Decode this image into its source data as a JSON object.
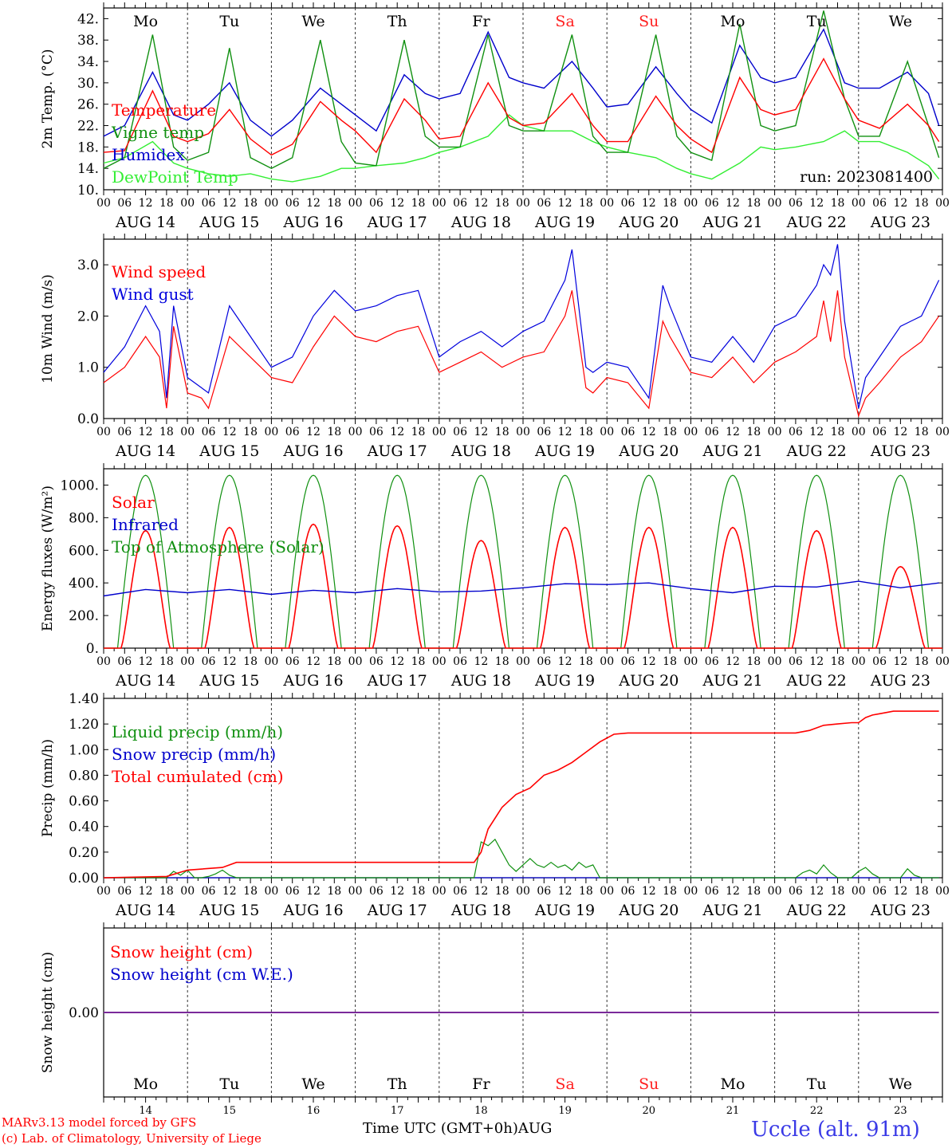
{
  "days": [
    "Mo",
    "Tu",
    "We",
    "Th",
    "Fr",
    "Sa",
    "Su",
    "Mo",
    "Tu",
    "We"
  ],
  "weekend_color": "#ff2020",
  "weekend_days": [
    5,
    6
  ],
  "dates": [
    "AUG 14",
    "AUG 15",
    "AUG 16",
    "AUG 17",
    "AUG 18",
    "AUG 19",
    "AUG 20",
    "AUG 21",
    "AUG 22",
    "AUG 23"
  ],
  "date_nums": [
    "14",
    "15",
    "16",
    "17",
    "18",
    "19",
    "20",
    "21",
    "22",
    "23"
  ],
  "hour_ticks": [
    "00",
    "06",
    "12",
    "18"
  ],
  "final_tick": "00",
  "footer": {
    "model": "MARv3.13 model forced by GFS",
    "lab": "(c) Lab. of Climatology, University of Liege",
    "xlabel": "Time UTC (GMT+0h)AUG",
    "station": "Uccle (alt. 91m)"
  },
  "chart_data": [
    {
      "type": "line",
      "ylabel": "2m Temp. (°C)",
      "ylim": [
        10,
        44
      ],
      "yticks": [
        "10.",
        "14.",
        "18.",
        "22.",
        "26.",
        "30.",
        "34.",
        "38.",
        "42."
      ],
      "annotation": "run: 2023081400",
      "x_unit": "hours from 2023-08-14 00 UTC",
      "series": [
        {
          "name": "Temperature",
          "color": "#ff0000",
          "x": [
            0,
            6,
            14,
            20,
            24,
            30,
            36,
            42,
            48,
            54,
            62,
            68,
            72,
            78,
            86,
            92,
            96,
            102,
            110,
            116,
            120,
            126,
            134,
            140,
            144,
            150,
            158,
            164,
            168,
            174,
            182,
            188,
            192,
            198,
            206,
            212,
            216,
            222,
            230,
            236,
            239
          ],
          "y": [
            17,
            17.3,
            28.5,
            20,
            19,
            20.5,
            25,
            19.5,
            16.5,
            18.5,
            26.5,
            23,
            21,
            17,
            27,
            23,
            19.5,
            20,
            30,
            23.5,
            22,
            22.5,
            28,
            22,
            19,
            19,
            27.5,
            22,
            19.5,
            17,
            31,
            25,
            24,
            25,
            34.5,
            27,
            23,
            21.5,
            26,
            22,
            19
          ]
        },
        {
          "name": "Vigne temp",
          "color": "#109010",
          "x": [
            0,
            6,
            14,
            20,
            24,
            30,
            36,
            42,
            48,
            54,
            62,
            68,
            72,
            78,
            86,
            92,
            96,
            102,
            110,
            116,
            120,
            126,
            134,
            140,
            144,
            150,
            158,
            164,
            168,
            174,
            182,
            188,
            192,
            198,
            206,
            212,
            216,
            222,
            230,
            236,
            239
          ],
          "y": [
            14,
            16,
            39,
            18,
            15.5,
            17,
            36.5,
            16,
            14,
            16,
            38,
            19,
            15,
            14.5,
            38,
            20,
            18,
            18,
            39,
            22,
            21,
            21,
            39,
            20,
            17,
            17,
            39,
            20,
            17,
            15.5,
            41,
            22,
            21,
            22,
            43.5,
            27,
            20,
            20,
            34,
            22,
            16
          ]
        },
        {
          "name": "Humidex",
          "color": "#0000cc",
          "x": [
            0,
            6,
            14,
            20,
            24,
            30,
            36,
            42,
            48,
            54,
            62,
            68,
            72,
            78,
            86,
            92,
            96,
            102,
            110,
            116,
            120,
            126,
            134,
            140,
            144,
            150,
            158,
            164,
            168,
            174,
            182,
            188,
            192,
            198,
            206,
            212,
            216,
            222,
            230,
            236,
            239
          ],
          "y": [
            20,
            22,
            32,
            24,
            23,
            26,
            30,
            23,
            20,
            23,
            29,
            26,
            24,
            21,
            31.5,
            28,
            27,
            28,
            39.5,
            31,
            30,
            29,
            34,
            29,
            25.5,
            26,
            33,
            28,
            25,
            22.5,
            37,
            31,
            30,
            31,
            40,
            30,
            29,
            29,
            32,
            28,
            22
          ]
        },
        {
          "name": "DewPoint Temp",
          "color": "#33ee33",
          "x": [
            0,
            6,
            14,
            20,
            24,
            30,
            36,
            42,
            48,
            54,
            62,
            68,
            72,
            78,
            86,
            92,
            96,
            102,
            110,
            116,
            120,
            126,
            134,
            140,
            144,
            150,
            158,
            164,
            168,
            174,
            182,
            188,
            192,
            198,
            206,
            212,
            216,
            222,
            230,
            236,
            239
          ],
          "y": [
            15,
            16,
            19,
            15,
            14,
            13,
            12.5,
            13,
            12,
            11.5,
            12.5,
            14,
            14,
            14.5,
            15,
            16,
            17,
            18,
            20,
            24,
            22,
            21,
            21,
            19,
            18,
            17,
            16,
            14,
            13,
            12,
            15,
            18,
            17.5,
            18,
            19,
            21,
            19,
            19,
            17,
            14.5,
            12
          ]
        }
      ]
    },
    {
      "type": "line",
      "ylabel": "10m Wind (m/s)",
      "ylim": [
        0,
        3.5
      ],
      "yticks": [
        "0.0",
        "1.0",
        "2.0",
        "3.0"
      ],
      "series": [
        {
          "name": "Wind speed",
          "color": "#ff0000",
          "x": [
            0,
            6,
            12,
            16,
            18,
            20,
            24,
            28,
            30,
            36,
            42,
            48,
            54,
            60,
            66,
            72,
            78,
            84,
            90,
            96,
            102,
            108,
            114,
            120,
            126,
            132,
            134,
            138,
            140,
            144,
            150,
            156,
            160,
            162,
            168,
            174,
            180,
            186,
            192,
            198,
            204,
            206,
            208,
            210,
            212,
            216,
            218,
            222,
            228,
            234,
            239
          ],
          "y": [
            0.7,
            1.0,
            1.6,
            1.2,
            0.2,
            1.8,
            0.5,
            0.4,
            0.2,
            1.6,
            1.2,
            0.8,
            0.7,
            1.4,
            2.0,
            1.6,
            1.5,
            1.7,
            1.8,
            0.9,
            1.1,
            1.3,
            1.0,
            1.2,
            1.3,
            2.0,
            2.5,
            0.6,
            0.5,
            0.8,
            0.7,
            0.2,
            1.9,
            1.6,
            0.9,
            0.8,
            1.2,
            0.7,
            1.1,
            1.3,
            1.6,
            2.3,
            1.5,
            2.5,
            1.2,
            0.05,
            0.4,
            0.7,
            1.2,
            1.5,
            2.0
          ]
        },
        {
          "name": "Wind gust",
          "color": "#0000dd",
          "x": [
            0,
            6,
            12,
            16,
            18,
            20,
            24,
            28,
            30,
            36,
            42,
            48,
            54,
            60,
            66,
            72,
            78,
            84,
            90,
            96,
            102,
            108,
            114,
            120,
            126,
            132,
            134,
            138,
            140,
            144,
            150,
            156,
            160,
            162,
            168,
            174,
            180,
            186,
            192,
            198,
            204,
            206,
            208,
            210,
            212,
            216,
            218,
            222,
            228,
            234,
            239
          ],
          "y": [
            0.9,
            1.4,
            2.2,
            1.7,
            0.4,
            2.2,
            0.8,
            0.6,
            0.5,
            2.2,
            1.6,
            1.0,
            1.2,
            2.0,
            2.5,
            2.1,
            2.2,
            2.4,
            2.5,
            1.2,
            1.5,
            1.7,
            1.4,
            1.7,
            1.9,
            2.7,
            3.3,
            1.0,
            0.9,
            1.1,
            1.0,
            0.4,
            2.6,
            2.2,
            1.2,
            1.1,
            1.6,
            1.1,
            1.8,
            2.0,
            2.6,
            3.0,
            2.8,
            3.4,
            1.9,
            0.2,
            0.8,
            1.2,
            1.8,
            2.0,
            2.7
          ]
        }
      ]
    },
    {
      "type": "line",
      "ylabel": "Energy fluxes (W/m²)",
      "ylim": [
        0,
        1100
      ],
      "yticks": [
        "0.",
        "200.",
        "400.",
        "600.",
        "800.",
        "1000."
      ],
      "series": [
        {
          "name": "Solar",
          "color": "#ff0000",
          "day_peaks": [
            720,
            740,
            760,
            750,
            660,
            740,
            740,
            740,
            720,
            500
          ],
          "sunrise_hour": 4,
          "sunset_hour": 20
        },
        {
          "name": "Infrared",
          "color": "#0000cc",
          "x": [
            0,
            12,
            24,
            36,
            48,
            60,
            72,
            84,
            96,
            108,
            120,
            132,
            144,
            156,
            168,
            180,
            192,
            204,
            216,
            228,
            239
          ],
          "y": [
            320,
            360,
            340,
            360,
            330,
            355,
            340,
            365,
            345,
            350,
            370,
            395,
            390,
            400,
            365,
            340,
            380,
            375,
            410,
            370,
            400
          ]
        },
        {
          "name": "Top of Atmosphere (Solar)",
          "color": "#109010",
          "peak": 1060,
          "sunrise_hour": 4,
          "sunset_hour": 20
        }
      ]
    },
    {
      "type": "line",
      "ylabel": "Precip (mm/h)",
      "ylim": [
        0,
        1.4
      ],
      "yticks": [
        "0.00",
        "0.20",
        "0.40",
        "0.60",
        "0.80",
        "1.00",
        "1.20",
        "1.40"
      ],
      "series": [
        {
          "name": "Liquid precip (mm/h)",
          "color": "#109010",
          "x": [
            0,
            18,
            20,
            22,
            24,
            26,
            28,
            30,
            32,
            34,
            36,
            38,
            40,
            106,
            108,
            110,
            112,
            114,
            116,
            118,
            120,
            122,
            124,
            126,
            128,
            130,
            132,
            134,
            136,
            138,
            140,
            142,
            144,
            146,
            148,
            150,
            152,
            154,
            156,
            158,
            160,
            162,
            164,
            166,
            168,
            170,
            172,
            174,
            176,
            178,
            180,
            182,
            184,
            186,
            188,
            190,
            192,
            194,
            196,
            198,
            200,
            202,
            204,
            206,
            208,
            210,
            212,
            214,
            216,
            218,
            220,
            222,
            224,
            226,
            228,
            230,
            232,
            234,
            236,
            239
          ],
          "y": [
            0,
            0,
            0.05,
            0.02,
            0.06,
            0,
            0,
            0.01,
            0.03,
            0.06,
            0.02,
            0,
            0,
            0,
            0.28,
            0.25,
            0.3,
            0.2,
            0.1,
            0.05,
            0.1,
            0.15,
            0.1,
            0.08,
            0.12,
            0.08,
            0.1,
            0.06,
            0.12,
            0.08,
            0.1,
            0,
            0,
            0,
            0,
            0,
            0,
            0,
            0,
            0,
            0,
            0,
            0,
            0,
            0,
            0,
            0,
            0,
            0,
            0,
            0,
            0,
            0,
            0,
            0,
            0,
            0,
            0,
            0,
            0,
            0.04,
            0.06,
            0.03,
            0.1,
            0.04,
            0,
            0,
            0,
            0.05,
            0.08,
            0.03,
            0,
            0,
            0,
            0,
            0.07,
            0.02,
            0,
            0,
            0
          ]
        },
        {
          "name": "Snow precip (mm/h)",
          "color": "#0000cc",
          "x": [
            0,
            239
          ],
          "y": [
            0,
            0
          ]
        },
        {
          "name": "Total cumulated (cm)",
          "color": "#ff0000",
          "x": [
            0,
            18,
            24,
            34,
            38,
            60,
            84,
            106,
            108,
            110,
            114,
            118,
            122,
            126,
            130,
            134,
            138,
            142,
            146,
            150,
            154,
            158,
            162,
            166,
            170,
            174,
            178,
            182,
            186,
            190,
            194,
            198,
            200,
            202,
            204,
            206,
            210,
            214,
            216,
            218,
            220,
            222,
            224,
            226,
            230,
            234,
            239
          ],
          "y": [
            0,
            0.01,
            0.06,
            0.08,
            0.12,
            0.12,
            0.12,
            0.12,
            0.2,
            0.38,
            0.55,
            0.65,
            0.7,
            0.8,
            0.84,
            0.9,
            0.98,
            1.06,
            1.12,
            1.13,
            1.13,
            1.13,
            1.13,
            1.13,
            1.13,
            1.13,
            1.13,
            1.13,
            1.13,
            1.13,
            1.13,
            1.13,
            1.14,
            1.15,
            1.17,
            1.19,
            1.2,
            1.21,
            1.21,
            1.25,
            1.27,
            1.28,
            1.29,
            1.3,
            1.3,
            1.3,
            1.3
          ]
        }
      ]
    },
    {
      "type": "line",
      "ylabel": "Snow height (cm)",
      "yticks": [
        "0.00"
      ],
      "series": [
        {
          "name": "Snow height (cm)",
          "color": "#ff0000",
          "x": [
            0,
            239
          ],
          "y": [
            0,
            0
          ]
        },
        {
          "name": "Snow height (cm W.E.)",
          "color": "#0000cc",
          "x": [
            0,
            239
          ],
          "y": [
            0,
            0
          ]
        }
      ]
    }
  ]
}
